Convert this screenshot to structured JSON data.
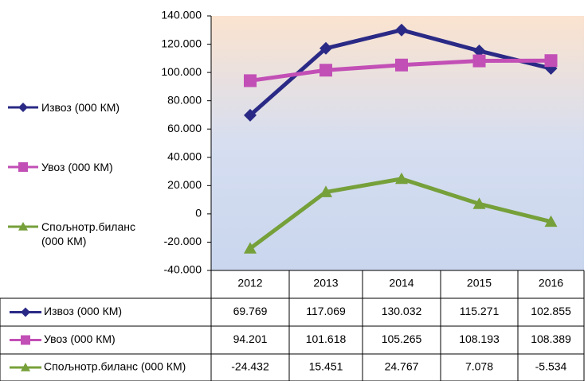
{
  "chart_data": {
    "type": "line",
    "categories": [
      "2012",
      "2013",
      "2014",
      "2015",
      "2016"
    ],
    "series": [
      {
        "name": "Извоз (000 КМ)",
        "color": "#2a2a86",
        "marker": "diamond",
        "values": [
          69769,
          117069,
          130032,
          115271,
          102855
        ],
        "value_labels": [
          "69.769",
          "117.069",
          "130.032",
          "115.271",
          "102.855"
        ]
      },
      {
        "name": "Увоз (000 КМ)",
        "color": "#c24fb6",
        "marker": "square",
        "values": [
          94201,
          101618,
          105265,
          108193,
          108389
        ],
        "value_labels": [
          "94.201",
          "101.618",
          "105.265",
          "108.193",
          "108.389"
        ]
      },
      {
        "name": "Спољнотр.биланс (000 КМ)",
        "color": "#76a03a",
        "marker": "triangle",
        "values": [
          -24432,
          15451,
          24767,
          7078,
          -5534
        ],
        "value_labels": [
          "-24.432",
          "15.451",
          "24.767",
          "7.078",
          "-5.534"
        ]
      }
    ],
    "ylim": [
      -40000,
      140000
    ],
    "yticks": [
      {
        "value": -40000,
        "label": "-40.000"
      },
      {
        "value": -20000,
        "label": "-20.000"
      },
      0,
      {
        "value": 20000,
        "label": "20.000"
      },
      {
        "value": 40000,
        "label": "40.000"
      },
      {
        "value": 60000,
        "label": "60.000"
      },
      {
        "value": 80000,
        "label": "80.000"
      },
      {
        "value": 100000,
        "label": "100.000"
      },
      {
        "value": 120000,
        "label": "120.000"
      },
      {
        "value": 140000,
        "label": "140.000"
      }
    ],
    "grid": false,
    "legend": "left"
  }
}
